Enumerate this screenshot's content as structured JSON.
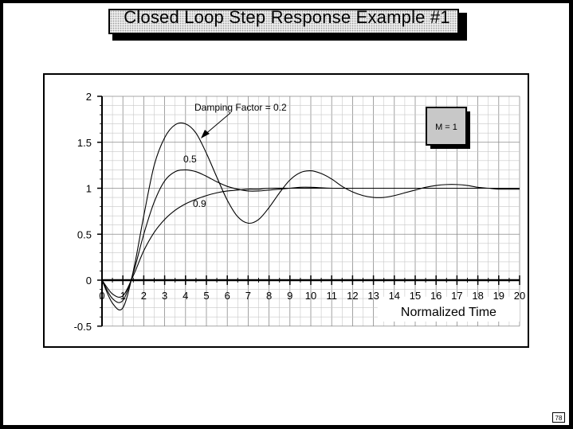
{
  "slide": {
    "title": "Closed  Loop  Step  Response  Example  #1",
    "page_number": "78"
  },
  "chart_data": {
    "type": "line",
    "xlabel": "Normalized  Time",
    "ylabel": "",
    "xlim": [
      0,
      20
    ],
    "ylim": [
      -0.5,
      2
    ],
    "x_ticks": [
      0,
      1,
      2,
      3,
      4,
      5,
      6,
      7,
      8,
      9,
      10,
      11,
      12,
      13,
      14,
      15,
      16,
      17,
      18,
      19,
      20
    ],
    "y_ticks": [
      -0.5,
      0,
      0.5,
      1,
      1.5,
      2
    ],
    "y_tick_labels": [
      "-0.5",
      "0",
      "0.5",
      "1",
      "1.5",
      "2"
    ],
    "grid": true,
    "parameter_box": "M  =  1",
    "annotations": [
      {
        "text": "Damping Factor = 0.2",
        "series": 0
      },
      {
        "text": "0.5",
        "series": 1
      },
      {
        "text": "0.9",
        "series": 2
      }
    ],
    "series": [
      {
        "x": [
          0,
          0.5,
          1,
          1.5,
          2,
          2.5,
          3,
          3.5,
          4,
          4.5,
          5,
          5.5,
          6,
          6.5,
          7,
          7.5,
          8,
          8.5,
          9,
          9.5,
          10,
          10.5,
          11,
          11.5,
          12,
          12.5,
          13,
          13.5,
          14,
          14.5,
          15,
          15.5,
          16,
          16.5,
          17,
          17.5,
          18,
          18.5,
          19,
          19.5,
          20
        ],
        "values": [
          0,
          -0.25,
          -0.3,
          0.1,
          0.7,
          1.25,
          1.55,
          1.69,
          1.7,
          1.6,
          1.38,
          1.12,
          0.87,
          0.69,
          0.62,
          0.66,
          0.79,
          0.95,
          1.09,
          1.17,
          1.19,
          1.16,
          1.1,
          1.02,
          0.96,
          0.92,
          0.9,
          0.9,
          0.92,
          0.95,
          0.98,
          1.01,
          1.03,
          1.04,
          1.04,
          1.03,
          1.01,
          1.0,
          0.99,
          0.99,
          0.99
        ]
      },
      {
        "x": [
          0,
          0.5,
          1,
          1.5,
          2,
          2.5,
          3,
          3.5,
          4,
          4.5,
          5,
          5.5,
          6,
          6.5,
          7,
          7.5,
          8,
          8.5,
          9,
          9.5,
          10,
          11,
          12,
          13,
          14,
          15,
          16,
          17,
          18,
          19,
          20
        ],
        "values": [
          0,
          -0.2,
          -0.22,
          0.08,
          0.5,
          0.85,
          1.08,
          1.18,
          1.2,
          1.18,
          1.13,
          1.07,
          1.02,
          0.99,
          0.97,
          0.97,
          0.98,
          0.99,
          1.0,
          1.01,
          1.01,
          1.0,
          1.0,
          1.0,
          1.0,
          1.0,
          1.0,
          1.0,
          1.0,
          1.0,
          1.0
        ]
      },
      {
        "x": [
          0,
          0.5,
          1,
          1.5,
          2,
          2.5,
          3,
          3.5,
          4,
          4.5,
          5,
          5.5,
          6,
          6.5,
          7,
          7.5,
          8,
          9,
          10,
          11,
          12,
          13,
          14,
          15,
          16,
          17,
          18,
          19,
          20
        ],
        "values": [
          0,
          -0.15,
          -0.17,
          0.05,
          0.32,
          0.52,
          0.66,
          0.76,
          0.83,
          0.88,
          0.92,
          0.95,
          0.97,
          0.98,
          0.99,
          0.99,
          1.0,
          1.0,
          1.0,
          1.0,
          1.0,
          1.0,
          1.0,
          1.0,
          1.0,
          1.0,
          1.0,
          1.0,
          1.0
        ]
      }
    ]
  }
}
